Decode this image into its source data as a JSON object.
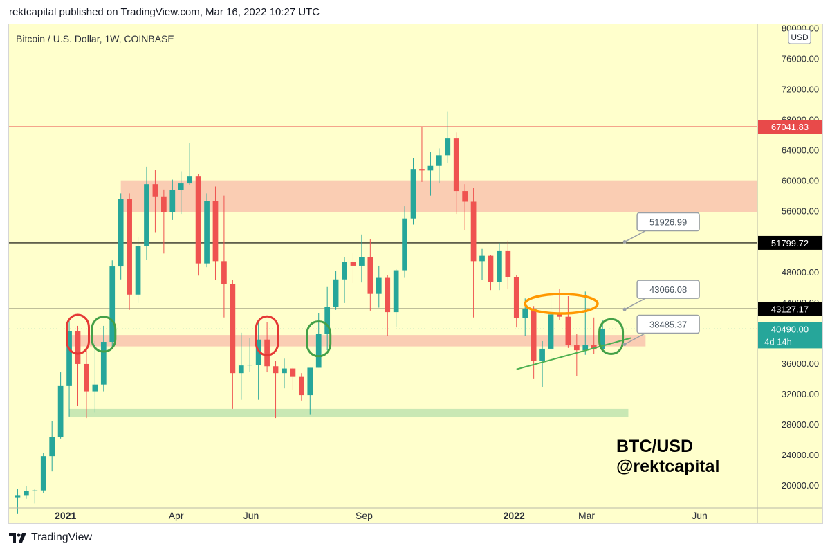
{
  "header": {
    "published": "rektcapital published on TradingView.com, Mar 16, 2022 10:27 UTC"
  },
  "symbol_title": "Bitcoin / U.S. Dollar, 1W, COINBASE",
  "watermark": {
    "line1": "BTC/USD",
    "line2": "@rektcapital"
  },
  "footer": {
    "brand": "TradingView",
    "logo_icon": "tradingview-logo-icon"
  },
  "colors": {
    "background": "#ffffcc",
    "up": "#26a69a",
    "down": "#ef5350",
    "resistance_zone": "#f9c8b0",
    "support_zone": "#c3e6b1",
    "red_line": "#e84a4a",
    "black_line": "#000000",
    "trendline": "#4caf50",
    "orange_ellipse": "#ff9800",
    "red_circle": "#e53935",
    "green_circle": "#43a047"
  },
  "chart_data": {
    "type": "candlestick",
    "title": "Bitcoin / U.S. Dollar, 1W, COINBASE",
    "timeframe": "1W",
    "ylim": [
      17000,
      80500
    ],
    "x_range": [
      "2020-11-16",
      "2022-07-18"
    ],
    "y_ticks": [
      "20000.00",
      "24000.00",
      "28000.00",
      "32000.00",
      "36000.00",
      "40000.00",
      "44000.00",
      "48000.00",
      "52000.00",
      "56000.00",
      "60000.00",
      "64000.00",
      "68000.00",
      "72000.00",
      "76000.00",
      "80000.00"
    ],
    "x_ticks": [
      {
        "label": "2021",
        "date": "2021-01-01",
        "bold": true
      },
      {
        "label": "Apr",
        "date": "2021-04-01",
        "bold": false
      },
      {
        "label": "Jun",
        "date": "2021-06-01",
        "bold": false
      },
      {
        "label": "Sep",
        "date": "2021-09-01",
        "bold": false
      },
      {
        "label": "2022",
        "date": "2022-01-01",
        "bold": true
      },
      {
        "label": "Mar",
        "date": "2022-03-01",
        "bold": false
      },
      {
        "label": "Jun",
        "date": "2022-06-01",
        "bold": false
      }
    ],
    "currency_label": "USD",
    "current_price": "40490.00",
    "countdown": "4d 14h",
    "candles": [
      {
        "date": "2020-11-23",
        "o": 18400,
        "h": 19500,
        "l": 16200,
        "c": 18600
      },
      {
        "date": "2020-11-30",
        "o": 18600,
        "h": 19900,
        "l": 18200,
        "c": 19200
      },
      {
        "date": "2020-12-07",
        "o": 19200,
        "h": 19500,
        "l": 17600,
        "c": 19300
      },
      {
        "date": "2020-12-14",
        "o": 19300,
        "h": 24200,
        "l": 19000,
        "c": 23800
      },
      {
        "date": "2020-12-21",
        "o": 23800,
        "h": 28400,
        "l": 21800,
        "c": 26300
      },
      {
        "date": "2020-12-28",
        "o": 26300,
        "h": 34800,
        "l": 26100,
        "c": 33000
      },
      {
        "date": "2021-01-04",
        "o": 33000,
        "h": 41900,
        "l": 29000,
        "c": 40200
      },
      {
        "date": "2021-01-11",
        "o": 40200,
        "h": 40900,
        "l": 30400,
        "c": 35900
      },
      {
        "date": "2021-01-18",
        "o": 35900,
        "h": 37900,
        "l": 28800,
        "c": 32300
      },
      {
        "date": "2021-01-25",
        "o": 32300,
        "h": 38900,
        "l": 29500,
        "c": 33200
      },
      {
        "date": "2021-02-01",
        "o": 33200,
        "h": 40900,
        "l": 32300,
        "c": 38800
      },
      {
        "date": "2021-02-08",
        "o": 38800,
        "h": 49500,
        "l": 38000,
        "c": 48700
      },
      {
        "date": "2021-02-15",
        "o": 48700,
        "h": 58300,
        "l": 47000,
        "c": 57600
      },
      {
        "date": "2021-02-22",
        "o": 57600,
        "h": 58300,
        "l": 43000,
        "c": 45000
      },
      {
        "date": "2021-03-01",
        "o": 45000,
        "h": 52600,
        "l": 43900,
        "c": 51400
      },
      {
        "date": "2021-03-08",
        "o": 51400,
        "h": 61800,
        "l": 49600,
        "c": 59500
      },
      {
        "date": "2021-03-15",
        "o": 59500,
        "h": 61400,
        "l": 53200,
        "c": 57900
      },
      {
        "date": "2021-03-22",
        "o": 57900,
        "h": 58800,
        "l": 50400,
        "c": 55800
      },
      {
        "date": "2021-03-29",
        "o": 55800,
        "h": 60100,
        "l": 54800,
        "c": 58700
      },
      {
        "date": "2021-04-05",
        "o": 58700,
        "h": 61200,
        "l": 55600,
        "c": 59600
      },
      {
        "date": "2021-04-12",
        "o": 59600,
        "h": 64900,
        "l": 59400,
        "c": 60500
      },
      {
        "date": "2021-04-19",
        "o": 60500,
        "h": 60800,
        "l": 47500,
        "c": 49100
      },
      {
        "date": "2021-04-26",
        "o": 49100,
        "h": 58300,
        "l": 48600,
        "c": 57300
      },
      {
        "date": "2021-05-03",
        "o": 57300,
        "h": 59200,
        "l": 46900,
        "c": 49400
      },
      {
        "date": "2021-05-10",
        "o": 49400,
        "h": 58000,
        "l": 42000,
        "c": 46400
      },
      {
        "date": "2021-05-17",
        "o": 46400,
        "h": 46900,
        "l": 30000,
        "c": 34700
      },
      {
        "date": "2021-05-24",
        "o": 34700,
        "h": 40000,
        "l": 31200,
        "c": 35700
      },
      {
        "date": "2021-05-31",
        "o": 35700,
        "h": 39300,
        "l": 34800,
        "c": 35800
      },
      {
        "date": "2021-06-07",
        "o": 35800,
        "h": 41400,
        "l": 31200,
        "c": 39100
      },
      {
        "date": "2021-06-14",
        "o": 39100,
        "h": 41400,
        "l": 34800,
        "c": 35600
      },
      {
        "date": "2021-06-21",
        "o": 35600,
        "h": 36300,
        "l": 28800,
        "c": 34700
      },
      {
        "date": "2021-06-28",
        "o": 34700,
        "h": 36600,
        "l": 32700,
        "c": 35300
      },
      {
        "date": "2021-07-05",
        "o": 35300,
        "h": 35400,
        "l": 32500,
        "c": 34200
      },
      {
        "date": "2021-07-12",
        "o": 34200,
        "h": 34700,
        "l": 31100,
        "c": 31800
      },
      {
        "date": "2021-07-19",
        "o": 31800,
        "h": 35400,
        "l": 29300,
        "c": 35400
      },
      {
        "date": "2021-07-26",
        "o": 35400,
        "h": 42600,
        "l": 35400,
        "c": 39800
      },
      {
        "date": "2021-08-02",
        "o": 39800,
        "h": 46000,
        "l": 37700,
        "c": 43400
      },
      {
        "date": "2021-08-09",
        "o": 43400,
        "h": 48100,
        "l": 43000,
        "c": 47000
      },
      {
        "date": "2021-08-16",
        "o": 47000,
        "h": 49900,
        "l": 43900,
        "c": 49300
      },
      {
        "date": "2021-08-23",
        "o": 49300,
        "h": 50500,
        "l": 46500,
        "c": 48800
      },
      {
        "date": "2021-08-30",
        "o": 48800,
        "h": 52900,
        "l": 46600,
        "c": 49900
      },
      {
        "date": "2021-09-06",
        "o": 49900,
        "h": 52300,
        "l": 42900,
        "c": 45100
      },
      {
        "date": "2021-09-13",
        "o": 45100,
        "h": 48800,
        "l": 43300,
        "c": 47200
      },
      {
        "date": "2021-09-20",
        "o": 47200,
        "h": 47600,
        "l": 39600,
        "c": 42700
      },
      {
        "date": "2021-09-27",
        "o": 42700,
        "h": 48400,
        "l": 40800,
        "c": 48200
      },
      {
        "date": "2021-10-04",
        "o": 48200,
        "h": 56600,
        "l": 47200,
        "c": 55000
      },
      {
        "date": "2021-10-11",
        "o": 55000,
        "h": 62900,
        "l": 54200,
        "c": 61500
      },
      {
        "date": "2021-10-18",
        "o": 61500,
        "h": 67000,
        "l": 59800,
        "c": 61300
      },
      {
        "date": "2021-10-25",
        "o": 61300,
        "h": 63700,
        "l": 58000,
        "c": 61900
      },
      {
        "date": "2021-11-01",
        "o": 61900,
        "h": 64200,
        "l": 59600,
        "c": 63300
      },
      {
        "date": "2021-11-08",
        "o": 63300,
        "h": 69000,
        "l": 62300,
        "c": 65500
      },
      {
        "date": "2021-11-15",
        "o": 65500,
        "h": 66300,
        "l": 55600,
        "c": 58600
      },
      {
        "date": "2021-11-22",
        "o": 58600,
        "h": 59500,
        "l": 53500,
        "c": 57200
      },
      {
        "date": "2021-11-29",
        "o": 57200,
        "h": 59000,
        "l": 42000,
        "c": 49400
      },
      {
        "date": "2021-12-06",
        "o": 49400,
        "h": 51000,
        "l": 46900,
        "c": 50100
      },
      {
        "date": "2021-12-13",
        "o": 50100,
        "h": 50200,
        "l": 45600,
        "c": 46700
      },
      {
        "date": "2021-12-20",
        "o": 46700,
        "h": 51800,
        "l": 45600,
        "c": 50800
      },
      {
        "date": "2021-12-27",
        "o": 50800,
        "h": 52100,
        "l": 45700,
        "c": 47300
      },
      {
        "date": "2022-01-03",
        "o": 47300,
        "h": 47600,
        "l": 40700,
        "c": 41900
      },
      {
        "date": "2022-01-10",
        "o": 41900,
        "h": 44500,
        "l": 39600,
        "c": 43100
      },
      {
        "date": "2022-01-17",
        "o": 43100,
        "h": 43500,
        "l": 34000,
        "c": 36300
      },
      {
        "date": "2022-01-24",
        "o": 36300,
        "h": 38900,
        "l": 32900,
        "c": 37900
      },
      {
        "date": "2022-01-31",
        "o": 37900,
        "h": 44500,
        "l": 36300,
        "c": 42400
      },
      {
        "date": "2022-02-07",
        "o": 42400,
        "h": 45800,
        "l": 41700,
        "c": 42100
      },
      {
        "date": "2022-02-14",
        "o": 42100,
        "h": 44800,
        "l": 38000,
        "c": 38400
      },
      {
        "date": "2022-02-21",
        "o": 38400,
        "h": 39800,
        "l": 34300,
        "c": 37700
      },
      {
        "date": "2022-02-28",
        "o": 37700,
        "h": 45400,
        "l": 37100,
        "c": 38400
      },
      {
        "date": "2022-03-07",
        "o": 38400,
        "h": 42000,
        "l": 37200,
        "c": 37800
      },
      {
        "date": "2022-03-14",
        "o": 37800,
        "h": 41700,
        "l": 37600,
        "c": 40490
      }
    ],
    "annotations": {
      "horizontal_lines": [
        {
          "price": 67041.83,
          "label": "67041.83",
          "color": "#e84a4a"
        },
        {
          "price": 51799.72,
          "label": "51799.72",
          "color": "#000000"
        },
        {
          "price": 43127.17,
          "label": "43127.17",
          "color": "#000000"
        }
      ],
      "zones": [
        {
          "from": 55800,
          "to": 60000,
          "date_from": "2021-02-15",
          "date_to": "2022-07-18",
          "color": "#f9c8b0"
        },
        {
          "from": 38200,
          "to": 39700,
          "date_from": "2021-01-04",
          "date_to": "2022-04-18",
          "color": "#f9c8b0"
        },
        {
          "from": 28900,
          "to": 30000,
          "date_from": "2021-01-04",
          "date_to": "2022-04-04",
          "color": "#c3e6b1"
        }
      ],
      "price_callouts": [
        {
          "label": "51926.99",
          "price": 51926.99,
          "date": "2022-04-01"
        },
        {
          "label": "43066.08",
          "price": 43066.08,
          "date": "2022-04-01"
        },
        {
          "label": "38485.37",
          "price": 38485.37,
          "date": "2022-04-01"
        }
      ],
      "trendline": {
        "from": {
          "date": "2022-01-03",
          "price": 35200
        },
        "to": {
          "date": "2022-04-06",
          "price": 39300
        }
      },
      "orange_ellipse": {
        "date_from": "2022-01-10",
        "date_to": "2022-03-10",
        "center_price": 43800
      },
      "red_circles": [
        {
          "date": "2021-01-11",
          "price": 39800
        },
        {
          "date": "2021-06-14",
          "price": 39600
        }
      ],
      "green_circles": [
        {
          "date": "2021-02-01",
          "price": 39800
        },
        {
          "date": "2021-07-26",
          "price": 39200
        },
        {
          "date": "2022-03-21",
          "price": 39500
        }
      ]
    }
  }
}
